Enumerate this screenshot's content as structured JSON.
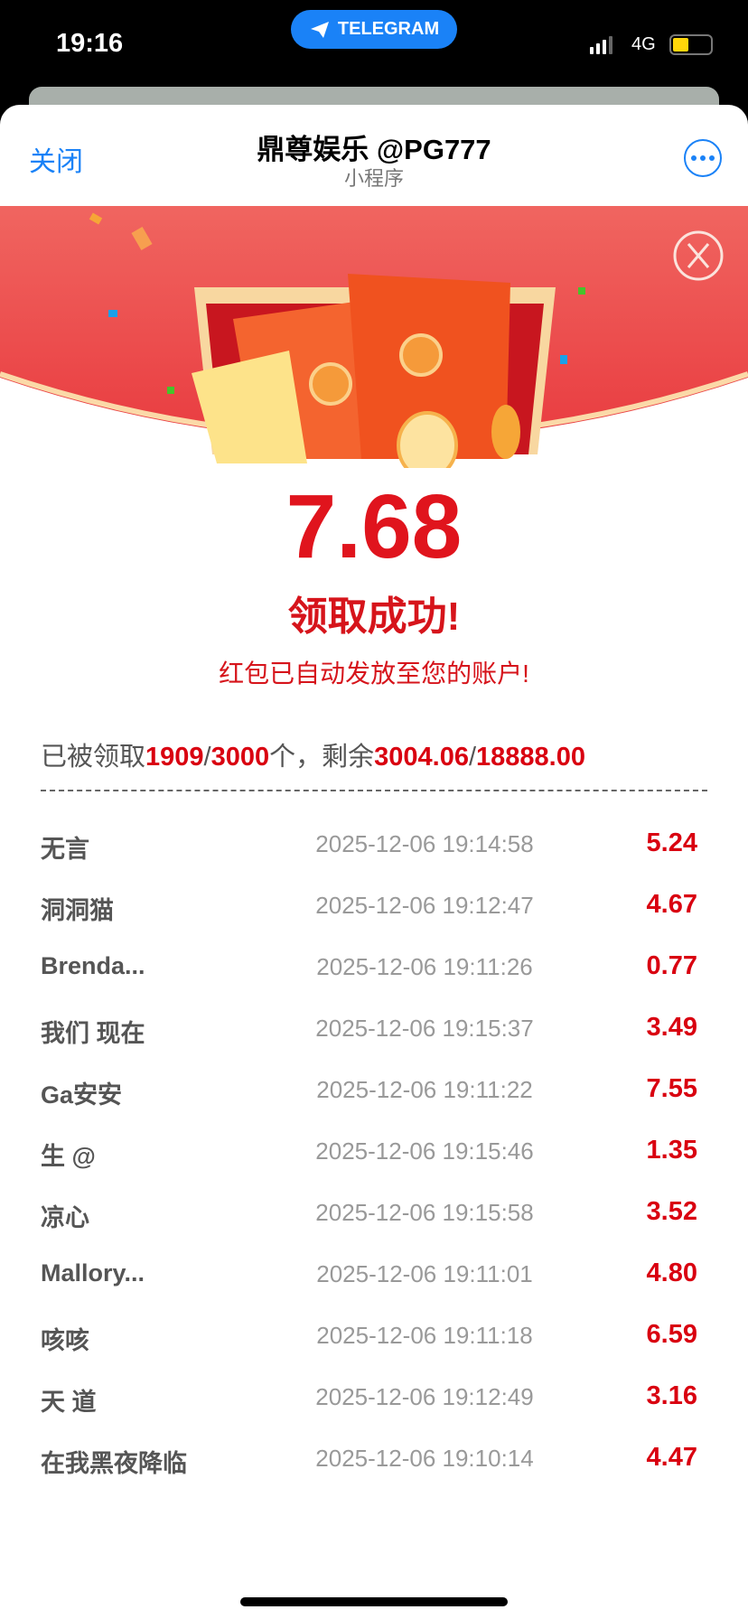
{
  "status_bar": {
    "time": "19:16",
    "app_pill": "TELEGRAM",
    "network": "4G",
    "battery_level": 0.35
  },
  "nav": {
    "close_label": "关闭",
    "title": "鼎尊娱乐 @PG777",
    "subtitle": "小程序"
  },
  "result": {
    "amount": "7.68",
    "success": "领取成功!",
    "note": "红包已自动发放至您的账户!"
  },
  "stats": {
    "prefix": "已被领取",
    "claimed": "1909",
    "slash1": "/",
    "total": "3000",
    "mid": "个，剩余",
    "remaining": "3004.06",
    "slash2": "/",
    "total_amount": "18888.00"
  },
  "records": [
    {
      "name": "无言",
      "time": "2025-12-06 19:14:58",
      "amount": "5.24"
    },
    {
      "name": "洞洞猫",
      "time": "2025-12-06 19:12:47",
      "amount": "4.67"
    },
    {
      "name": "Brenda...",
      "time": "2025-12-06 19:11:26",
      "amount": "0.77"
    },
    {
      "name": "我们 现在",
      "time": "2025-12-06 19:15:37",
      "amount": "3.49"
    },
    {
      "name": "Ga安安",
      "time": "2025-12-06 19:11:22",
      "amount": "7.55"
    },
    {
      "name": "生 @",
      "time": "2025-12-06 19:15:46",
      "amount": "1.35"
    },
    {
      "name": "凉心",
      "time": "2025-12-06 19:15:58",
      "amount": "3.52"
    },
    {
      "name": "Mallory...",
      "time": "2025-12-06 19:11:01",
      "amount": "4.80"
    },
    {
      "name": "咳咳",
      "time": "2025-12-06 19:11:18",
      "amount": "6.59"
    },
    {
      "name": "天 道",
      "time": "2025-12-06 19:12:49",
      "amount": "3.16"
    },
    {
      "name": "在我黑夜降临",
      "time": "2025-12-06 19:10:14",
      "amount": "4.47"
    }
  ],
  "colors": {
    "accent_red": "#d90010",
    "link_blue": "#1a82f7",
    "banner_red": "#ee4a48"
  }
}
